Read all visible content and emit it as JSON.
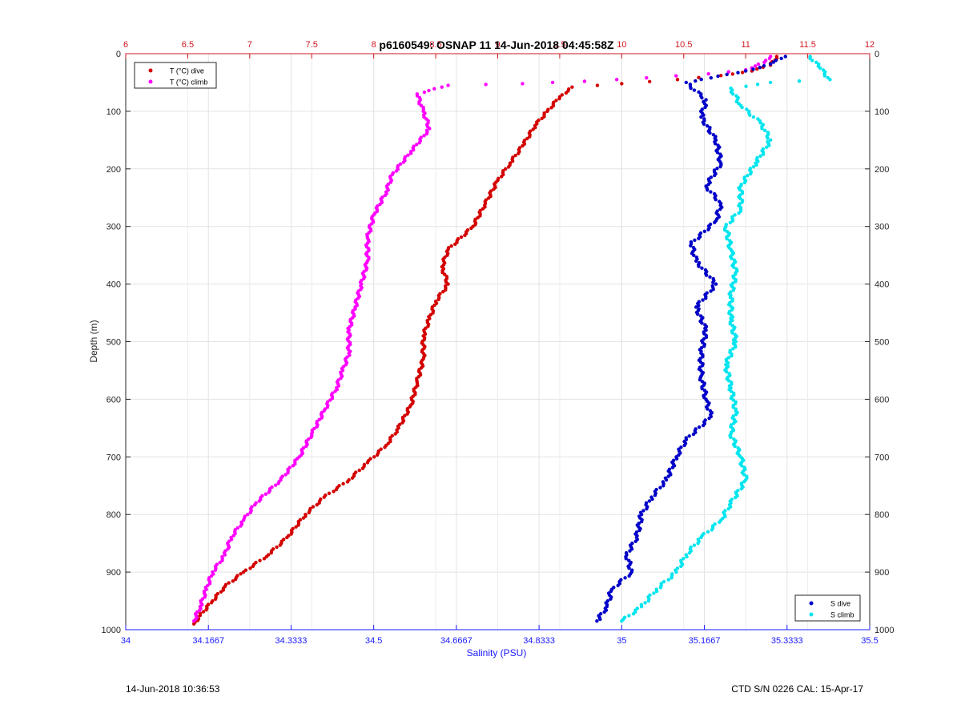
{
  "chart_data": {
    "type": "scatter",
    "title": "p6160549: OSNAP 11 14-Jun-2018 04:45:58Z",
    "ylabel": "Depth (m)",
    "xlabel_bottom": "Salinity (PSU)",
    "xlabel_top": "",
    "grid": true,
    "y_reversed": true,
    "ylim": [
      0,
      1000
    ],
    "y_ticks": [
      "0",
      "100",
      "200",
      "300",
      "400",
      "500",
      "600",
      "700",
      "800",
      "900",
      "1000"
    ],
    "x_top": {
      "range": [
        6,
        12
      ],
      "ticks": [
        "6",
        "6.5",
        "7",
        "7.5",
        "8",
        "8.5",
        "9",
        "9.5",
        "10",
        "10.5",
        "11",
        "11.5",
        "12"
      ],
      "color": "#d0161f"
    },
    "x_bottom": {
      "range": [
        34,
        35.5
      ],
      "ticks": [
        "34",
        "34.1667",
        "34.3333",
        "34.5",
        "34.6667",
        "34.8333",
        "35",
        "35.1667",
        "35.3333",
        "35.5"
      ],
      "color": "#1a1aff"
    },
    "legends": [
      {
        "position": "top-left",
        "entries": [
          "T (°C) dive",
          "T (°C) climb"
        ]
      },
      {
        "position": "bottom-right",
        "entries": [
          "S dive",
          "S climb"
        ]
      }
    ],
    "series": [
      {
        "name": "T (°C) dive",
        "axis": "top",
        "color": "#d40000",
        "points": [
          [
            11.25,
            5
          ],
          [
            11.2,
            20
          ],
          [
            11.05,
            30
          ],
          [
            10.8,
            38
          ],
          [
            10.45,
            45
          ],
          [
            10.0,
            52
          ],
          [
            9.6,
            58
          ],
          [
            9.5,
            75
          ],
          [
            9.4,
            100
          ],
          [
            9.3,
            125
          ],
          [
            9.2,
            160
          ],
          [
            9.1,
            190
          ],
          [
            9.0,
            220
          ],
          [
            8.9,
            260
          ],
          [
            8.8,
            300
          ],
          [
            8.6,
            340
          ],
          [
            8.55,
            370
          ],
          [
            8.6,
            400
          ],
          [
            8.5,
            430
          ],
          [
            8.45,
            460
          ],
          [
            8.4,
            490
          ],
          [
            8.4,
            530
          ],
          [
            8.35,
            570
          ],
          [
            8.3,
            610
          ],
          [
            8.2,
            650
          ],
          [
            8.1,
            680
          ],
          [
            7.95,
            710
          ],
          [
            7.8,
            740
          ],
          [
            7.6,
            770
          ],
          [
            7.45,
            800
          ],
          [
            7.3,
            840
          ],
          [
            7.15,
            870
          ],
          [
            6.95,
            900
          ],
          [
            6.8,
            925
          ],
          [
            6.7,
            950
          ],
          [
            6.6,
            975
          ],
          [
            6.55,
            990
          ]
        ]
      },
      {
        "name": "T (°C) climb",
        "axis": "top",
        "color": "#ff00ff",
        "points": [
          [
            11.2,
            5
          ],
          [
            11.15,
            15
          ],
          [
            11.0,
            28
          ],
          [
            10.7,
            35
          ],
          [
            10.2,
            42
          ],
          [
            9.7,
            48
          ],
          [
            9.2,
            52
          ],
          [
            8.6,
            55
          ],
          [
            8.35,
            70
          ],
          [
            8.4,
            100
          ],
          [
            8.45,
            130
          ],
          [
            8.3,
            170
          ],
          [
            8.15,
            210
          ],
          [
            8.1,
            240
          ],
          [
            8.0,
            280
          ],
          [
            7.95,
            320
          ],
          [
            7.95,
            360
          ],
          [
            7.9,
            400
          ],
          [
            7.85,
            440
          ],
          [
            7.8,
            480
          ],
          [
            7.8,
            520
          ],
          [
            7.75,
            550
          ],
          [
            7.7,
            580
          ],
          [
            7.6,
            620
          ],
          [
            7.5,
            660
          ],
          [
            7.4,
            700
          ],
          [
            7.25,
            740
          ],
          [
            7.05,
            780
          ],
          [
            6.95,
            810
          ],
          [
            6.85,
            840
          ],
          [
            6.8,
            870
          ],
          [
            6.7,
            900
          ],
          [
            6.65,
            930
          ],
          [
            6.6,
            960
          ],
          [
            6.55,
            985
          ]
        ]
      },
      {
        "name": "S dive",
        "axis": "bottom",
        "color": "#0000c8",
        "points": [
          [
            35.33,
            5
          ],
          [
            35.3,
            18
          ],
          [
            35.25,
            30
          ],
          [
            35.18,
            42
          ],
          [
            35.13,
            50
          ],
          [
            35.17,
            80
          ],
          [
            35.16,
            110
          ],
          [
            35.19,
            150
          ],
          [
            35.2,
            190
          ],
          [
            35.17,
            230
          ],
          [
            35.2,
            260
          ],
          [
            35.19,
            290
          ],
          [
            35.14,
            330
          ],
          [
            35.15,
            360
          ],
          [
            35.19,
            400
          ],
          [
            35.15,
            440
          ],
          [
            35.17,
            480
          ],
          [
            35.16,
            520
          ],
          [
            35.16,
            560
          ],
          [
            35.17,
            600
          ],
          [
            35.18,
            630
          ],
          [
            35.13,
            670
          ],
          [
            35.11,
            700
          ],
          [
            35.09,
            740
          ],
          [
            35.06,
            770
          ],
          [
            35.04,
            800
          ],
          [
            35.03,
            840
          ],
          [
            35.01,
            870
          ],
          [
            35.02,
            900
          ],
          [
            34.98,
            930
          ],
          [
            34.97,
            960
          ],
          [
            34.95,
            985
          ]
        ]
      },
      {
        "name": "S climb",
        "axis": "bottom",
        "color": "#00e5ee",
        "points": [
          [
            35.38,
            5
          ],
          [
            35.4,
            25
          ],
          [
            35.42,
            45
          ],
          [
            35.3,
            50
          ],
          [
            35.22,
            60
          ],
          [
            35.24,
            90
          ],
          [
            35.28,
            120
          ],
          [
            35.3,
            150
          ],
          [
            35.27,
            190
          ],
          [
            35.24,
            230
          ],
          [
            35.24,
            270
          ],
          [
            35.21,
            300
          ],
          [
            35.22,
            340
          ],
          [
            35.23,
            380
          ],
          [
            35.22,
            420
          ],
          [
            35.22,
            460
          ],
          [
            35.23,
            500
          ],
          [
            35.21,
            540
          ],
          [
            35.22,
            580
          ],
          [
            35.23,
            620
          ],
          [
            35.22,
            660
          ],
          [
            35.24,
            700
          ],
          [
            35.25,
            740
          ],
          [
            35.22,
            780
          ],
          [
            35.2,
            810
          ],
          [
            35.16,
            840
          ],
          [
            35.13,
            870
          ],
          [
            35.11,
            900
          ],
          [
            35.07,
            930
          ],
          [
            35.04,
            960
          ],
          [
            35.0,
            985
          ]
        ]
      }
    ]
  },
  "footer": {
    "timestamp": "14-Jun-2018 10:36:53",
    "sensor": "CTD S/N 0226  CAL: 15-Apr-17"
  }
}
